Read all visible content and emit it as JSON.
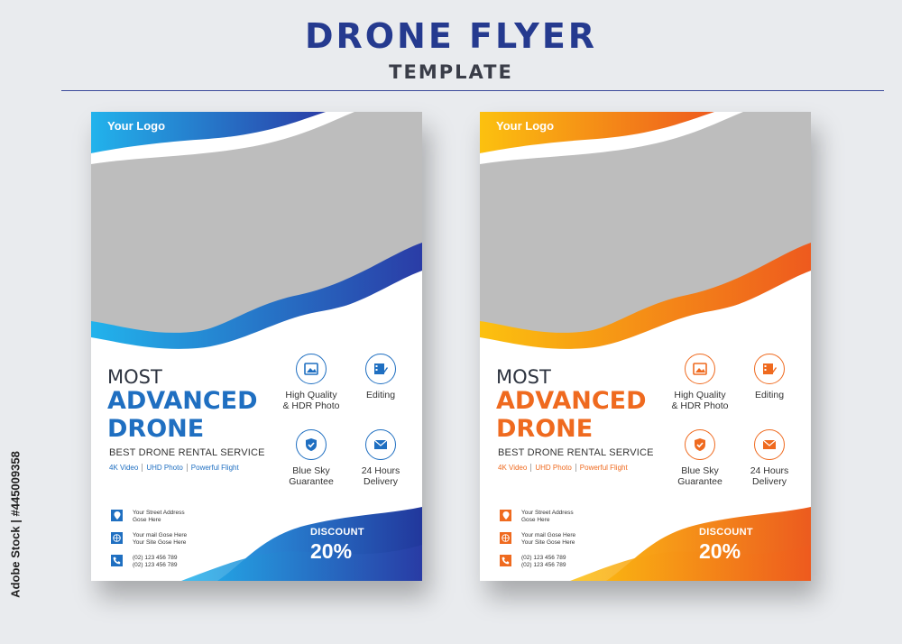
{
  "header": {
    "title": "DRONE FLYER",
    "subtitle": "TEMPLATE"
  },
  "watermark": "Adobe Stock | #445009358",
  "flyers": [
    {
      "theme": "blue",
      "accent": "#1f6fc1",
      "logo": "Your Logo",
      "title_top": "MOST",
      "title_line1": "ADVANCED",
      "title_line2": "DRONE",
      "tagline": "BEST DRONE RENTAL SERVICE",
      "features": [
        "4K Video",
        "UHD Photo",
        "Powerful Flight"
      ],
      "services": [
        {
          "icon": "image-icon",
          "line1": "High Quality",
          "line2": "& HDR Photo"
        },
        {
          "icon": "film-edit-icon",
          "line1": "Editing",
          "line2": ""
        },
        {
          "icon": "shield-check-icon",
          "line1": "Blue Sky",
          "line2": "Guarantee"
        },
        {
          "icon": "mail-icon",
          "line1": "24 Hours",
          "line2": "Delivery"
        }
      ],
      "contacts": [
        {
          "icon": "location-icon",
          "line1": "Your Street Address",
          "line2": "Gose Here"
        },
        {
          "icon": "globe-icon",
          "line1": "Your mail Gose Here",
          "line2": "Your Site Gose Here"
        },
        {
          "icon": "phone-icon",
          "line1": "(02) 123 456 789",
          "line2": "(02) 123 456 789"
        }
      ],
      "discount_label": "DISCOUNT",
      "discount_value": "20%"
    },
    {
      "theme": "orange",
      "accent": "#ef6a1f",
      "logo": "Your Logo",
      "title_top": "MOST",
      "title_line1": "ADVANCED",
      "title_line2": "DRONE",
      "tagline": "BEST DRONE RENTAL SERVICE",
      "features": [
        "4K Video",
        "UHD Photo",
        "Powerful Flight"
      ],
      "services": [
        {
          "icon": "image-icon",
          "line1": "High Quality",
          "line2": "& HDR Photo"
        },
        {
          "icon": "film-edit-icon",
          "line1": "Editing",
          "line2": ""
        },
        {
          "icon": "shield-check-icon",
          "line1": "Blue Sky",
          "line2": "Guarantee"
        },
        {
          "icon": "mail-icon",
          "line1": "24 Hours",
          "line2": "Delivery"
        }
      ],
      "contacts": [
        {
          "icon": "location-icon",
          "line1": "Your Street Address",
          "line2": "Gose Here"
        },
        {
          "icon": "globe-icon",
          "line1": "Your mail Gose Here",
          "line2": "Your Site Gose Here"
        },
        {
          "icon": "phone-icon",
          "line1": "(02) 123 456 789",
          "line2": "(02) 123 456 789"
        }
      ],
      "discount_label": "DISCOUNT",
      "discount_value": "20%"
    }
  ]
}
